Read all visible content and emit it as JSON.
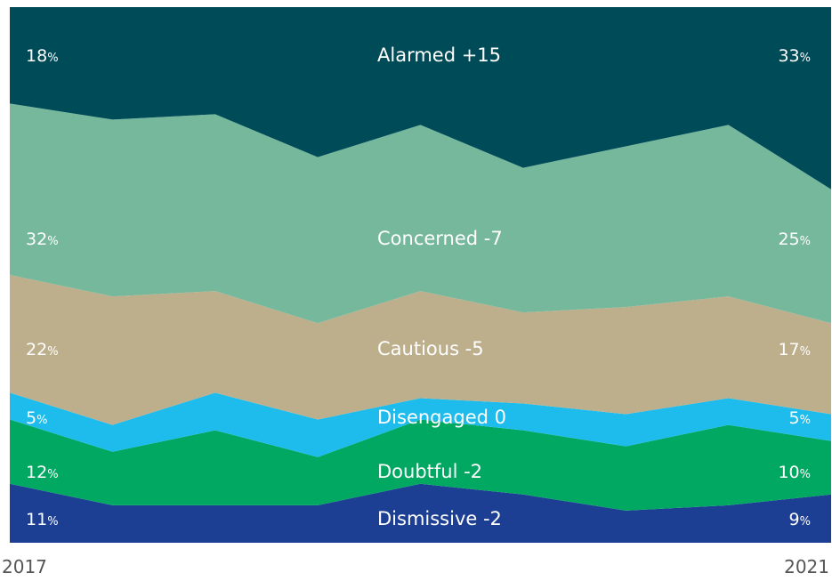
{
  "chart_data": {
    "type": "area",
    "stacked": true,
    "normalized": true,
    "title": "",
    "xlabel": "",
    "ylabel": "",
    "ylim": [
      0,
      100
    ],
    "x": [
      "2017",
      "",
      "",
      "",
      "",
      "",
      "",
      "",
      "2021"
    ],
    "x_tick_labels": [
      "2017",
      "2021"
    ],
    "grid": false,
    "legend": "none",
    "series": [
      {
        "name": "Dismissive",
        "change": "-2",
        "label": "Dismissive -2",
        "color": "#1c3f94",
        "values": [
          11,
          7,
          7,
          7,
          11,
          9,
          6,
          7,
          9
        ],
        "start_value": "11",
        "end_value": "9"
      },
      {
        "name": "Doubtful",
        "change": "-2",
        "label": "Doubtful -2",
        "color": "#00a862",
        "values": [
          12,
          10,
          14,
          9,
          12,
          12,
          12,
          15,
          10
        ],
        "start_value": "12",
        "end_value": "10"
      },
      {
        "name": "Disengaged",
        "change": "0",
        "label": "Disengaged 0",
        "color": "#1dbced",
        "values": [
          5,
          5,
          7,
          7,
          4,
          5,
          6,
          5,
          5
        ],
        "start_value": "5",
        "end_value": "5"
      },
      {
        "name": "Cautious",
        "change": "-5",
        "label": "Cautious -5",
        "color": "#bdaf8c",
        "values": [
          22,
          24,
          19,
          18,
          20,
          17,
          20,
          19,
          17
        ],
        "start_value": "22",
        "end_value": "17"
      },
      {
        "name": "Concerned",
        "change": "-7",
        "label": "Concerned -7",
        "color": "#76b89b",
        "values": [
          32,
          33,
          33,
          31,
          31,
          27,
          30,
          32,
          25
        ],
        "start_value": "32",
        "end_value": "25"
      },
      {
        "name": "Alarmed",
        "change": "+15",
        "label": "Alarmed +15",
        "color": "#004b58",
        "values": [
          18,
          21,
          20,
          28,
          22,
          30,
          25,
          24,
          33
        ],
        "start_value": "18",
        "end_value": "33"
      }
    ],
    "percent_sign": "%"
  }
}
